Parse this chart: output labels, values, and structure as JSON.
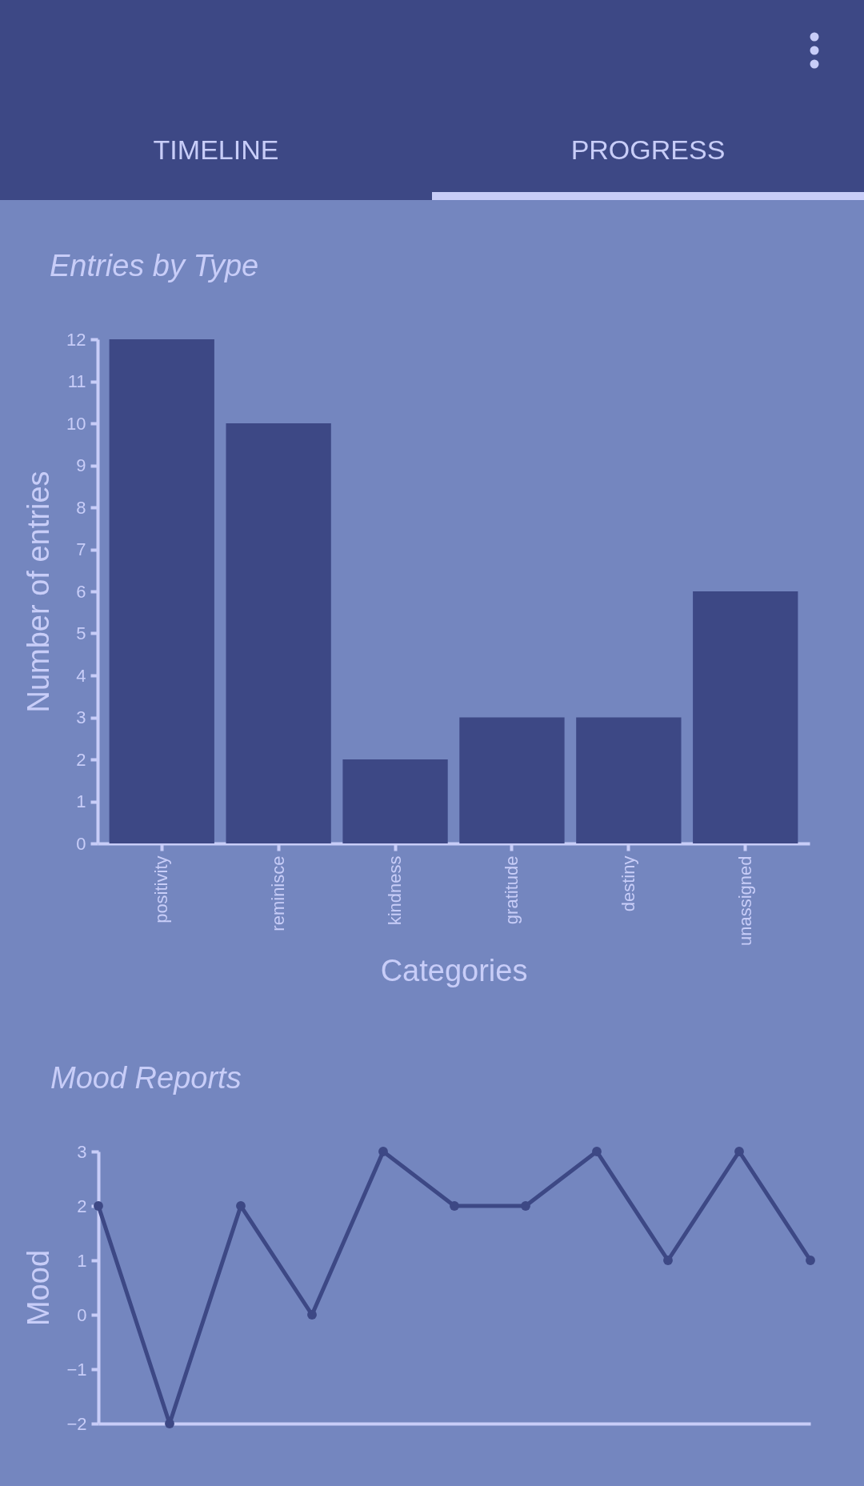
{
  "chart_data": [
    {
      "type": "other",
      "annotations": [
        "TIMELINE",
        "PROGRESS"
      ]
    },
    {
      "type": "bar",
      "title": "Entries by Type",
      "xlabel": "Categories",
      "ylabel": "Number of entries",
      "categories": [
        "positivity",
        "reminisce",
        "kindness",
        "gratitude",
        "destiny",
        "unassigned"
      ],
      "values": [
        12,
        10,
        2,
        3,
        3,
        6
      ],
      "color": "#3d4885",
      "ylim": [
        0,
        12
      ],
      "yticks": [
        0,
        1,
        2,
        3,
        4,
        5,
        6,
        7,
        8,
        9,
        10,
        11,
        12
      ],
      "grid": false
    },
    {
      "type": "line",
      "title": "Mood Reports",
      "ylabel": "Mood",
      "categories": [
        null,
        null,
        null,
        null,
        null,
        null,
        null,
        null,
        null,
        null,
        null
      ],
      "values": [
        2,
        -2,
        2,
        0,
        3,
        2,
        2,
        3,
        1,
        3,
        1
      ],
      "color": "#3d4885",
      "ylim": [
        -2,
        3
      ],
      "yticks": [
        -2,
        -1,
        0,
        1,
        2,
        3
      ],
      "marker": "circle",
      "line_style": "solid",
      "tick_labels": "y",
      "grid": false
    }
  ]
}
